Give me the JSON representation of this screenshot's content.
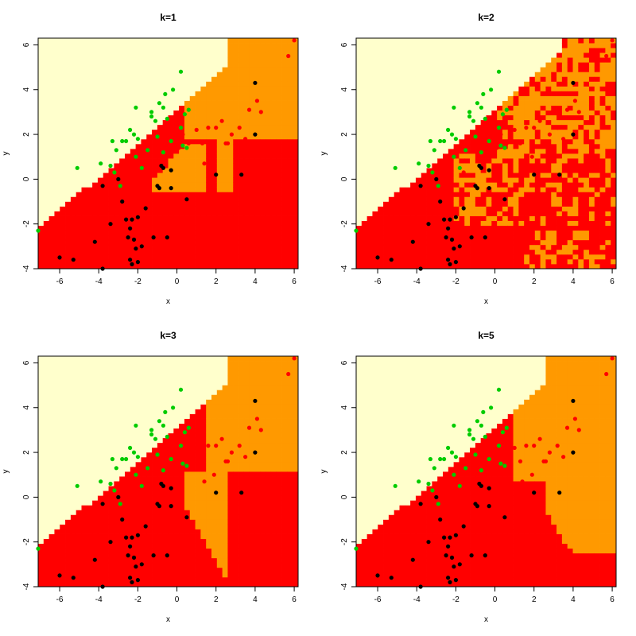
{
  "chart_data": [
    {
      "type": "scatter",
      "title": "k=1",
      "xlabel": "x",
      "ylabel": "y",
      "xlim": [
        -7.1,
        6.2
      ],
      "ylim": [
        -4.0,
        6.3
      ],
      "xticks": [
        "-6",
        "-4",
        "-2",
        "0",
        "2",
        "4",
        "6"
      ],
      "yticks": [
        "-4",
        "-2",
        "0",
        "2",
        "4",
        "6"
      ],
      "regions": "smooth",
      "region_colors": {
        "yellow": "#FFFFCC",
        "orange": "#FF9900",
        "red": "#FF0000"
      }
    },
    {
      "type": "scatter",
      "title": "k=2",
      "xlabel": "x",
      "ylabel": "y",
      "xlim": [
        -7.1,
        6.2
      ],
      "ylim": [
        -4.0,
        6.3
      ],
      "xticks": [
        "-6",
        "-4",
        "-2",
        "0",
        "2",
        "4",
        "6"
      ],
      "yticks": [
        "-4",
        "-2",
        "0",
        "2",
        "4",
        "6"
      ],
      "regions": "noisy",
      "region_colors": {
        "yellow": "#FFFFCC",
        "orange": "#FF9900",
        "red": "#FF0000"
      }
    },
    {
      "type": "scatter",
      "title": "k=3",
      "xlabel": "x",
      "ylabel": "y",
      "xlim": [
        -7.1,
        6.2
      ],
      "ylim": [
        -4.0,
        6.3
      ],
      "xticks": [
        "-6",
        "-4",
        "-2",
        "0",
        "2",
        "4",
        "6"
      ],
      "yticks": [
        "-4",
        "-2",
        "0",
        "2",
        "4",
        "6"
      ],
      "regions": "smooth",
      "region_colors": {
        "yellow": "#FFFFCC",
        "orange": "#FF9900",
        "red": "#FF0000"
      }
    },
    {
      "type": "scatter",
      "title": "k=5",
      "xlabel": "x",
      "ylabel": "y",
      "xlim": [
        -7.1,
        6.2
      ],
      "ylim": [
        -4.0,
        6.3
      ],
      "xticks": [
        "-6",
        "-4",
        "-2",
        "0",
        "2",
        "4",
        "6"
      ],
      "yticks": [
        "-4",
        "-2",
        "0",
        "2",
        "4",
        "6"
      ],
      "regions": "smooth",
      "region_colors": {
        "yellow": "#FFFFCC",
        "orange": "#FF9900",
        "red": "#FF0000"
      }
    }
  ],
  "points": {
    "green": {
      "color": "#00CC00",
      "x": [
        0.2,
        -0.2,
        -0.6,
        -0.9,
        -0.7,
        -1.3,
        -1.3,
        -2.1,
        -2.4,
        -2.2,
        -2.6,
        -2.8,
        -3.3,
        -3.1,
        -3.4,
        -3.2,
        -3.9,
        -5.1,
        -2.1,
        -2.0,
        -1.5,
        -1.0,
        -1.1,
        -0.5,
        0.4,
        0.6,
        0.2,
        -0.3,
        -0.7,
        0.3,
        -7.1,
        -2.9,
        -1.8,
        0.5
      ],
      "y": [
        4.8,
        4.0,
        3.8,
        3.4,
        3.2,
        3.0,
        2.8,
        3.2,
        2.2,
        2.0,
        1.7,
        1.7,
        1.7,
        1.3,
        0.6,
        0.3,
        0.7,
        0.5,
        1.0,
        1.8,
        1.3,
        1.9,
        2.6,
        2.7,
        2.9,
        3.1,
        2.3,
        1.7,
        1.2,
        1.5,
        -2.3,
        -0.3,
        0.5,
        1.4
      ]
    },
    "red": {
      "color": "#FF0000",
      "x": [
        6.0,
        5.7,
        4.1,
        3.7,
        3.2,
        2.8,
        2.5,
        2.0,
        1.6,
        1.3,
        1.0,
        0.6,
        0.3,
        0.1,
        2.6,
        1.9,
        1.4,
        -1.6,
        0.4,
        3.5,
        4.3,
        2.3
      ],
      "y": [
        6.2,
        5.5,
        3.5,
        3.1,
        2.3,
        2.0,
        1.6,
        2.3,
        2.3,
        1.6,
        2.2,
        1.6,
        2.0,
        1.4,
        1.6,
        1.0,
        0.7,
        0.3,
        -0.7,
        1.8,
        3.0,
        2.6
      ]
    },
    "black": {
      "color": "#000000",
      "x": [
        4.0,
        4.0,
        2.0,
        3.3,
        -0.3,
        -0.9,
        -1.0,
        -0.7,
        -0.8,
        -0.3,
        0.5,
        -1.6,
        -2.0,
        -2.3,
        -2.6,
        -2.8,
        -3.0,
        -3.4,
        -3.8,
        -4.2,
        -2.4,
        -2.2,
        -2.4,
        -2.5,
        -1.8,
        -2.1,
        -2.3,
        -1.2,
        -0.5,
        -3.8,
        -5.3,
        -6.0,
        -2.0
      ],
      "y": [
        4.3,
        2.0,
        0.2,
        0.2,
        -0.4,
        -0.4,
        -0.3,
        0.5,
        0.6,
        0.4,
        -0.9,
        -1.3,
        -1.7,
        -1.8,
        -1.8,
        -1.0,
        0.0,
        -2.0,
        -0.3,
        -2.8,
        -2.2,
        -2.7,
        -3.6,
        -2.6,
        -3.0,
        -3.1,
        -3.8,
        -2.6,
        -2.6,
        -4.0,
        -3.6,
        -3.5,
        -3.7
      ]
    }
  }
}
